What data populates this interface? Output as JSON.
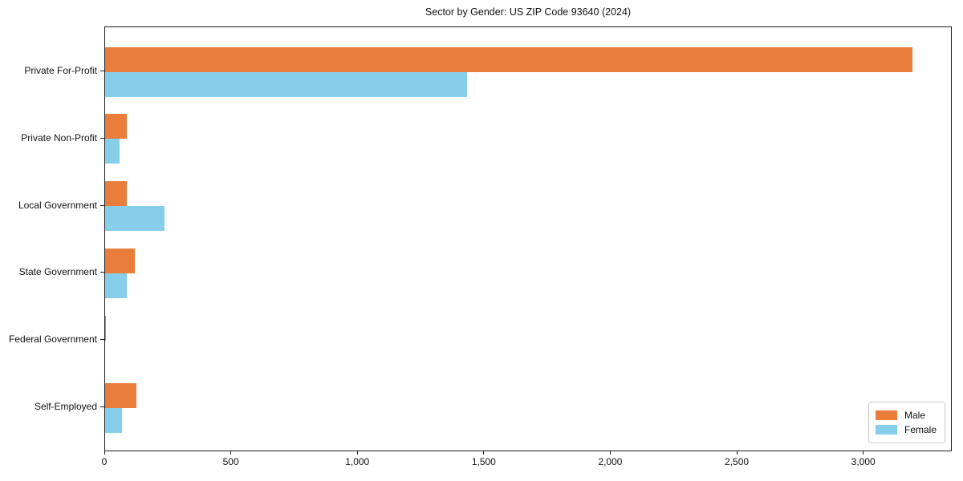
{
  "chart_data": {
    "type": "bar",
    "orientation": "horizontal",
    "title": "Sector by Gender: US ZIP Code 93640 (2024)",
    "categories": [
      "Private For-Profit",
      "Private Non-Profit",
      "Local Government",
      "State Government",
      "Federal Government",
      "Self-Employed"
    ],
    "series": [
      {
        "name": "Male",
        "color": "#e87d3c",
        "values": [
          3190,
          87,
          87,
          117,
          4,
          123
        ]
      },
      {
        "name": "Female",
        "color": "#87ceeb",
        "values": [
          1430,
          58,
          235,
          85,
          0,
          66
        ]
      }
    ],
    "xlabel": "",
    "ylabel": "",
    "xlim": [
      0,
      3350
    ],
    "xticks": [
      0,
      500,
      1000,
      1500,
      2000,
      2500,
      3000
    ],
    "xtick_labels": [
      "0",
      "500",
      "1,000",
      "1,500",
      "2,000",
      "2,500",
      "3,000"
    ],
    "grid": false,
    "legend": {
      "position": "lower right"
    }
  }
}
